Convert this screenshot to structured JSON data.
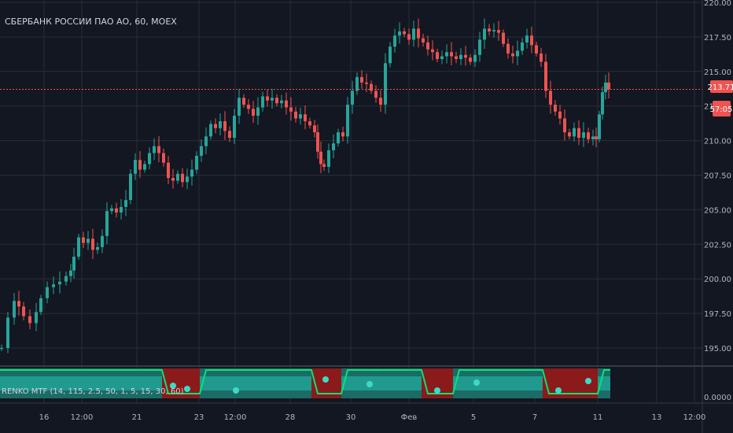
{
  "title": "СБЕРБАНК РОССИИ ПАО АО, 60, MOEX",
  "indicator_label": "RENKO MTF (14, 115, 2.5, 50, 1, 5, 15, 30, 60)",
  "last_price_label": "213.71",
  "countdown_label": "57:05",
  "indicator_axis_label": "0.0000",
  "colors": {
    "background": "#131722",
    "grid": "#2a2e39",
    "up": "#26a69a",
    "down": "#ef5350",
    "axis_text": "#b2b5be",
    "price_line": "#ef5350",
    "indicator_teal": "#26a69a",
    "indicator_red": "#8b1a1a",
    "indicator_green_line": "#00e676"
  },
  "chart_data": {
    "type": "candlestick",
    "title": "СБЕРБАНК РОССИИ ПАО АО, 60, MOEX",
    "ylim": [
      194,
      220
    ],
    "y_ticks": [
      "220.00",
      "217.50",
      "215.00",
      "212.50",
      "210.00",
      "207.50",
      "205.00",
      "202.50",
      "200.00",
      "197.50",
      "195.00"
    ],
    "x_ticks": [
      "16",
      "12:00",
      "21",
      "23",
      "12:00",
      "28",
      "30",
      "Фев",
      "5",
      "7",
      "11",
      "13",
      "12:00"
    ],
    "last_price": 213.71,
    "grid": true,
    "close_path": [
      [
        0,
        195.0
      ],
      [
        8,
        197.2
      ],
      [
        16,
        198.4
      ],
      [
        22,
        198.0
      ],
      [
        28,
        197.3
      ],
      [
        36,
        196.8
      ],
      [
        44,
        197.6
      ],
      [
        50,
        198.6
      ],
      [
        58,
        199.4
      ],
      [
        66,
        199.6
      ],
      [
        74,
        199.8
      ],
      [
        82,
        200.2
      ],
      [
        88,
        200.6
      ],
      [
        92,
        201.6
      ],
      [
        98,
        203.0
      ],
      [
        104,
        202.6
      ],
      [
        110,
        202.9
      ],
      [
        116,
        202.1
      ],
      [
        122,
        202.3
      ],
      [
        128,
        203.1
      ],
      [
        134,
        204.9
      ],
      [
        140,
        205.1
      ],
      [
        146,
        204.8
      ],
      [
        152,
        205.2
      ],
      [
        158,
        205.7
      ],
      [
        164,
        207.6
      ],
      [
        170,
        208.6
      ],
      [
        176,
        207.9
      ],
      [
        182,
        208.3
      ],
      [
        188,
        209.1
      ],
      [
        194,
        209.6
      ],
      [
        200,
        209.1
      ],
      [
        206,
        208.4
      ],
      [
        212,
        207.3
      ],
      [
        218,
        207.1
      ],
      [
        224,
        207.6
      ],
      [
        230,
        207.0
      ],
      [
        236,
        207.4
      ],
      [
        242,
        207.9
      ],
      [
        248,
        208.9
      ],
      [
        254,
        209.6
      ],
      [
        260,
        210.3
      ],
      [
        266,
        211.2
      ],
      [
        272,
        210.9
      ],
      [
        278,
        211.4
      ],
      [
        284,
        210.7
      ],
      [
        290,
        210.2
      ],
      [
        296,
        211.8
      ],
      [
        302,
        213.1
      ],
      [
        308,
        212.6
      ],
      [
        314,
        212.3
      ],
      [
        320,
        211.8
      ],
      [
        326,
        212.4
      ],
      [
        332,
        213.2
      ],
      [
        338,
        212.9
      ],
      [
        344,
        213.1
      ],
      [
        350,
        212.7
      ],
      [
        356,
        212.9
      ],
      [
        362,
        212.4
      ],
      [
        368,
        212.1
      ],
      [
        374,
        211.6
      ],
      [
        380,
        211.9
      ],
      [
        386,
        211.4
      ],
      [
        392,
        211.1
      ],
      [
        398,
        210.6
      ],
      [
        402,
        209.2
      ],
      [
        406,
        208.3
      ],
      [
        410,
        208.1
      ],
      [
        416,
        209.3
      ],
      [
        422,
        209.8
      ],
      [
        428,
        210.6
      ],
      [
        434,
        210.3
      ],
      [
        440,
        212.6
      ],
      [
        446,
        213.6
      ],
      [
        452,
        214.6
      ],
      [
        458,
        214.2
      ],
      [
        464,
        214.1
      ],
      [
        470,
        213.6
      ],
      [
        476,
        213.1
      ],
      [
        482,
        212.6
      ],
      [
        488,
        215.6
      ],
      [
        494,
        216.8
      ],
      [
        500,
        217.6
      ],
      [
        506,
        217.9
      ],
      [
        512,
        217.7
      ],
      [
        518,
        217.3
      ],
      [
        524,
        218.1
      ],
      [
        530,
        217.4
      ],
      [
        536,
        217.1
      ],
      [
        542,
        216.6
      ],
      [
        548,
        216.4
      ],
      [
        554,
        215.9
      ],
      [
        560,
        216.1
      ],
      [
        566,
        216.4
      ],
      [
        572,
        216.1
      ],
      [
        578,
        215.9
      ],
      [
        584,
        216.2
      ],
      [
        590,
        216.0
      ],
      [
        596,
        215.7
      ],
      [
        602,
        216.2
      ],
      [
        608,
        217.3
      ],
      [
        614,
        218.1
      ],
      [
        620,
        217.9
      ],
      [
        626,
        218.0
      ],
      [
        632,
        217.8
      ],
      [
        638,
        217.0
      ],
      [
        644,
        216.3
      ],
      [
        650,
        216.1
      ],
      [
        656,
        216.5
      ],
      [
        662,
        217.1
      ],
      [
        668,
        217.6
      ],
      [
        674,
        216.9
      ],
      [
        680,
        216.3
      ],
      [
        686,
        215.7
      ],
      [
        692,
        213.6
      ],
      [
        698,
        212.6
      ],
      [
        704,
        212.1
      ],
      [
        710,
        211.6
      ],
      [
        716,
        210.6
      ],
      [
        722,
        210.3
      ],
      [
        728,
        210.9
      ],
      [
        734,
        210.2
      ],
      [
        740,
        210.6
      ],
      [
        746,
        210.1
      ],
      [
        752,
        210.3
      ],
      [
        756,
        210.1
      ],
      [
        760,
        211.9
      ],
      [
        764,
        213.5
      ],
      [
        768,
        214.2
      ],
      [
        772,
        213.71
      ]
    ]
  }
}
